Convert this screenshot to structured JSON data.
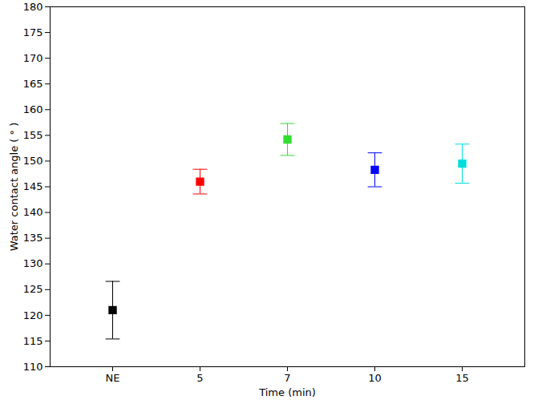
{
  "chart_data": {
    "type": "scatter",
    "x_label": "Time (min)",
    "y_label": "Water contact angle ( ° )",
    "categories": [
      "NE",
      "5",
      "7",
      "10",
      "15"
    ],
    "values": [
      121.0,
      146.0,
      154.2,
      148.3,
      149.5
    ],
    "errors": [
      5.6,
      2.4,
      3.1,
      3.3,
      3.8
    ],
    "colors": [
      "#000000",
      "#ff0000",
      "#33dd33",
      "#0000ff",
      "#00dddd"
    ],
    "marker": "square",
    "ylim": [
      110,
      180
    ],
    "yticks": [
      110,
      115,
      120,
      125,
      130,
      135,
      140,
      145,
      150,
      155,
      160,
      165,
      170,
      175,
      180
    ],
    "grid": false
  }
}
